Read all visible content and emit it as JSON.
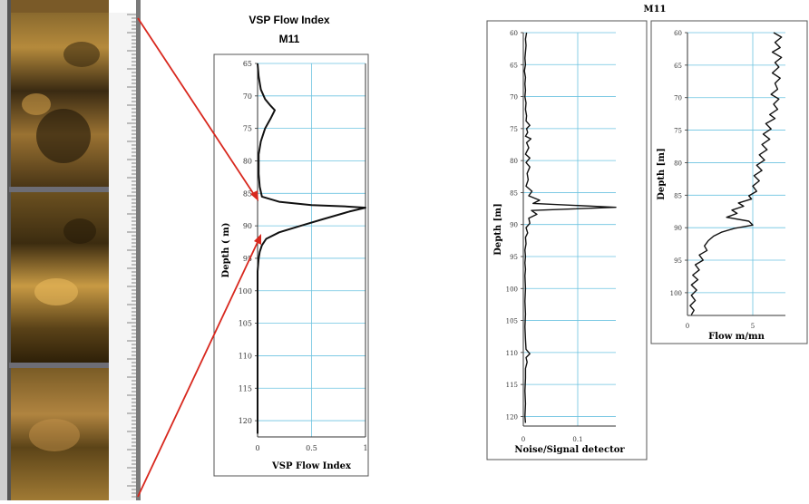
{
  "chart_data": [
    {
      "type": "line",
      "title": "VSP Flow Index",
      "subtitle": "M11",
      "xlabel": "VSP Flow Index",
      "ylabel": "Depth ( m)",
      "xlim": [
        0,
        1
      ],
      "ylim": [
        65,
        122.5
      ],
      "y_inverted": true,
      "grid": true,
      "x_ticks": [
        "0",
        "0.5",
        "1"
      ],
      "y_ticks": [
        "65",
        "70",
        "75",
        "80",
        "85",
        "90",
        "95",
        "100",
        "105",
        "110",
        "115",
        "120"
      ],
      "series": [
        {
          "points": [
            [
              0,
              65
            ],
            [
              0.01,
              67
            ],
            [
              0.03,
              69
            ],
            [
              0.07,
              70.5
            ],
            [
              0.12,
              71.5
            ],
            [
              0.16,
              72.2
            ],
            [
              0.12,
              73.5
            ],
            [
              0.07,
              75
            ],
            [
              0.03,
              77
            ],
            [
              0.01,
              79
            ],
            [
              0.01,
              82
            ],
            [
              0.02,
              84
            ],
            [
              0.04,
              85.5
            ],
            [
              0.2,
              86.3
            ],
            [
              0.5,
              86.8
            ],
            [
              0.8,
              87
            ],
            [
              1,
              87.2
            ],
            [
              0.85,
              87.8
            ],
            [
              0.6,
              89
            ],
            [
              0.4,
              90
            ],
            [
              0.2,
              91
            ],
            [
              0.08,
              92
            ],
            [
              0.04,
              93
            ],
            [
              0.02,
              94
            ],
            [
              0.01,
              95
            ],
            [
              0,
              97
            ],
            [
              0,
              100
            ],
            [
              0,
              105
            ],
            [
              0,
              110
            ],
            [
              0,
              115
            ],
            [
              0,
              120
            ],
            [
              0,
              122
            ]
          ]
        }
      ]
    },
    {
      "type": "line",
      "title": "M11",
      "xlabel": "Noise/Signal detector",
      "ylabel": "Depth [m]",
      "xlim": [
        0,
        0.17
      ],
      "ylim": [
        60,
        121.5
      ],
      "y_inverted": true,
      "grid": true,
      "x_ticks": [
        "0",
        "0.1"
      ],
      "y_ticks": [
        "60",
        "65",
        "70",
        "75",
        "80",
        "85",
        "90",
        "95",
        "100",
        "105",
        "110",
        "115",
        "120"
      ],
      "series": [
        {
          "points": [
            [
              0.006,
              60
            ],
            [
              0.004,
              61
            ],
            [
              0.005,
              62
            ],
            [
              0.004,
              63
            ],
            [
              0.003,
              64
            ],
            [
              0.004,
              65
            ],
            [
              0.002,
              66
            ],
            [
              0.004,
              67
            ],
            [
              0.003,
              68
            ],
            [
              0.004,
              69
            ],
            [
              0.003,
              70
            ],
            [
              0.005,
              71
            ],
            [
              0.004,
              72
            ],
            [
              0.006,
              73
            ],
            [
              0.005,
              73.8
            ],
            [
              0.012,
              74.5
            ],
            [
              0.006,
              75
            ],
            [
              0.008,
              75.6
            ],
            [
              0.004,
              76.2
            ],
            [
              0.014,
              76.6
            ],
            [
              0.006,
              77.2
            ],
            [
              0.01,
              78
            ],
            [
              0.004,
              79
            ],
            [
              0.012,
              79.6
            ],
            [
              0.005,
              80.3
            ],
            [
              0.012,
              81
            ],
            [
              0.007,
              82
            ],
            [
              0.009,
              83
            ],
            [
              0.005,
              84
            ],
            [
              0.016,
              84.8
            ],
            [
              0.01,
              85.5
            ],
            [
              0.03,
              86.2
            ],
            [
              0.018,
              86.7
            ],
            [
              0.17,
              87.3
            ],
            [
              0.015,
              87.8
            ],
            [
              0.025,
              88.4
            ],
            [
              0.01,
              89
            ],
            [
              0.012,
              89.8
            ],
            [
              0.005,
              90.5
            ],
            [
              0.008,
              91.3
            ],
            [
              0.004,
              92
            ],
            [
              0.005,
              93
            ],
            [
              0.003,
              94
            ],
            [
              0.004,
              95
            ],
            [
              0.003,
              96
            ],
            [
              0.004,
              97
            ],
            [
              0.003,
              98
            ],
            [
              0.004,
              100
            ],
            [
              0.003,
              102
            ],
            [
              0.004,
              104
            ],
            [
              0.003,
              106
            ],
            [
              0.004,
              108
            ],
            [
              0.005,
              109.5
            ],
            [
              0.012,
              110.2
            ],
            [
              0.005,
              110.8
            ],
            [
              0.007,
              111.5
            ],
            [
              0.004,
              112.5
            ],
            [
              0.004,
              114
            ],
            [
              0.003,
              116
            ],
            [
              0.004,
              118
            ],
            [
              0.003,
              120
            ],
            [
              0.004,
              121
            ]
          ]
        }
      ]
    },
    {
      "type": "line",
      "xlabel": "Flow m/mn",
      "ylabel": "Depth [m]",
      "xlim": [
        0,
        7.5
      ],
      "ylim": [
        60,
        103.5
      ],
      "y_inverted": true,
      "grid": true,
      "x_ticks": [
        "0",
        "5"
      ],
      "y_ticks": [
        "60",
        "65",
        "70",
        "75",
        "80",
        "85",
        "90",
        "95",
        "100"
      ],
      "series": [
        {
          "points": [
            [
              6.6,
              60
            ],
            [
              7.2,
              60.7
            ],
            [
              6.7,
              61.5
            ],
            [
              7.1,
              62.3
            ],
            [
              6.5,
              63
            ],
            [
              7.2,
              63.8
            ],
            [
              6.7,
              64.6
            ],
            [
              7.0,
              65.3
            ],
            [
              6.5,
              66.2
            ],
            [
              7.1,
              67
            ],
            [
              6.7,
              67.8
            ],
            [
              6.9,
              68.7
            ],
            [
              6.4,
              69.5
            ],
            [
              7.0,
              70.2
            ],
            [
              6.6,
              71
            ],
            [
              6.9,
              71.8
            ],
            [
              6.3,
              72.6
            ],
            [
              6.7,
              73.2
            ],
            [
              6.0,
              74
            ],
            [
              6.4,
              74.8
            ],
            [
              5.8,
              75.6
            ],
            [
              6.3,
              76.4
            ],
            [
              5.7,
              77.2
            ],
            [
              6.1,
              78
            ],
            [
              5.5,
              78.8
            ],
            [
              5.9,
              79.6
            ],
            [
              5.3,
              80.4
            ],
            [
              5.7,
              81.2
            ],
            [
              5.1,
              82
            ],
            [
              5.5,
              82.8
            ],
            [
              5.0,
              83.6
            ],
            [
              5.3,
              84.4
            ],
            [
              4.7,
              85.1
            ],
            [
              4.9,
              85.6
            ],
            [
              3.9,
              86.2
            ],
            [
              4.3,
              86.7
            ],
            [
              3.4,
              87.3
            ],
            [
              3.8,
              87.8
            ],
            [
              3.0,
              88.4
            ],
            [
              4.7,
              89
            ],
            [
              5.0,
              89.6
            ],
            [
              3.6,
              90.1
            ],
            [
              2.6,
              90.7
            ],
            [
              2.0,
              91.3
            ],
            [
              1.6,
              92
            ],
            [
              1.3,
              92.8
            ],
            [
              1.5,
              93.5
            ],
            [
              0.9,
              94.2
            ],
            [
              1.2,
              95
            ],
            [
              0.6,
              95.7
            ],
            [
              0.9,
              96.5
            ],
            [
              0.4,
              97.3
            ],
            [
              0.8,
              98
            ],
            [
              0.3,
              98.8
            ],
            [
              0.7,
              99.6
            ],
            [
              0.3,
              100.4
            ],
            [
              0.6,
              101.2
            ],
            [
              0.2,
              102
            ],
            [
              0.5,
              102.7
            ],
            [
              0.3,
              103.4
            ]
          ]
        }
      ]
    }
  ]
}
